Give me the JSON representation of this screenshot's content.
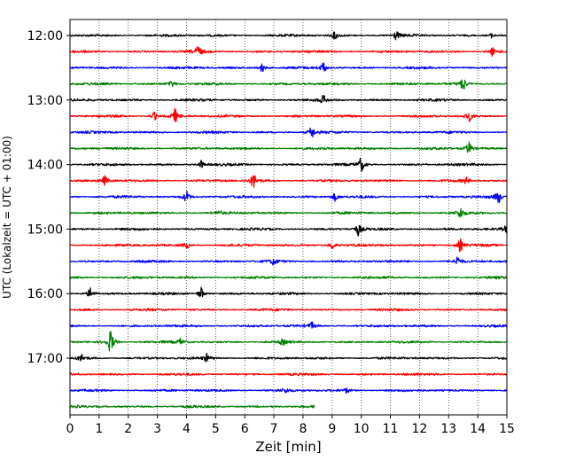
{
  "chart_data": {
    "type": "line",
    "title": "",
    "xlabel": "Zeit  [min]",
    "ylabel": "UTC (Lokalzeit = UTC + 01:00)",
    "xlim": [
      0,
      15
    ],
    "x_ticks": [
      "0",
      "1",
      "2",
      "3",
      "4",
      "5",
      "6",
      "7",
      "8",
      "9",
      "10",
      "11",
      "12",
      "13",
      "14",
      "15"
    ],
    "y_tick_labels": [
      "12:00",
      "13:00",
      "14:00",
      "15:00",
      "16:00",
      "17:00"
    ],
    "grid": "vertical dotted at each minute",
    "trace_interval_minutes": 15,
    "colors_cycle": [
      "#000000",
      "#ff0000",
      "#0000ff",
      "#008000"
    ],
    "traces": [
      {
        "start": "12:00",
        "color": "#000000",
        "end_min": 15,
        "events": [
          [
            9.1,
            0.5
          ],
          [
            11.2,
            0.5
          ],
          [
            14.5,
            0.35
          ]
        ]
      },
      {
        "start": "12:15",
        "color": "#ff0000",
        "end_min": 15,
        "events": [
          [
            4.4,
            0.8
          ],
          [
            14.5,
            0.5
          ]
        ]
      },
      {
        "start": "12:30",
        "color": "#0000ff",
        "end_min": 15,
        "events": [
          [
            6.6,
            0.6
          ],
          [
            8.7,
            0.7
          ]
        ]
      },
      {
        "start": "12:45",
        "color": "#008000",
        "end_min": 15,
        "events": [
          [
            3.5,
            0.4
          ],
          [
            13.5,
            0.9
          ]
        ]
      },
      {
        "start": "13:00",
        "color": "#000000",
        "end_min": 15,
        "events": [
          [
            8.7,
            0.5
          ]
        ]
      },
      {
        "start": "13:15",
        "color": "#ff0000",
        "end_min": 15,
        "events": [
          [
            2.9,
            0.5
          ],
          [
            3.6,
            0.9
          ],
          [
            13.7,
            0.6
          ]
        ]
      },
      {
        "start": "13:30",
        "color": "#0000ff",
        "end_min": 15,
        "events": [
          [
            8.3,
            0.8
          ]
        ]
      },
      {
        "start": "13:45",
        "color": "#008000",
        "end_min": 15,
        "events": [
          [
            13.7,
            0.8
          ]
        ]
      },
      {
        "start": "14:00",
        "color": "#000000",
        "end_min": 15,
        "events": [
          [
            4.5,
            0.5
          ],
          [
            10.0,
            0.9
          ]
        ]
      },
      {
        "start": "14:15",
        "color": "#ff0000",
        "end_min": 15,
        "events": [
          [
            1.2,
            0.6
          ],
          [
            6.3,
            1.0
          ],
          [
            13.6,
            0.4
          ]
        ]
      },
      {
        "start": "14:30",
        "color": "#0000ff",
        "end_min": 15,
        "events": [
          [
            4.0,
            0.8
          ],
          [
            9.1,
            0.5
          ],
          [
            14.7,
            0.9
          ]
        ]
      },
      {
        "start": "14:45",
        "color": "#008000",
        "end_min": 15,
        "events": [
          [
            5.1,
            0.3
          ],
          [
            13.4,
            0.7
          ]
        ]
      },
      {
        "start": "15:00",
        "color": "#000000",
        "end_min": 15,
        "events": [
          [
            9.9,
            0.8
          ],
          [
            15.0,
            0.5
          ]
        ]
      },
      {
        "start": "15:15",
        "color": "#ff0000",
        "end_min": 15,
        "events": [
          [
            4.0,
            0.4
          ],
          [
            9.0,
            0.6
          ],
          [
            13.4,
            0.8
          ]
        ]
      },
      {
        "start": "15:30",
        "color": "#0000ff",
        "end_min": 15,
        "events": [
          [
            7.0,
            0.4
          ],
          [
            13.3,
            0.6
          ]
        ]
      },
      {
        "start": "15:45",
        "color": "#008000",
        "end_min": 15,
        "events": []
      },
      {
        "start": "16:00",
        "color": "#000000",
        "end_min": 15,
        "events": [
          [
            0.7,
            0.8
          ],
          [
            4.5,
            0.8
          ]
        ]
      },
      {
        "start": "16:15",
        "color": "#ff0000",
        "end_min": 15,
        "events": []
      },
      {
        "start": "16:30",
        "color": "#0000ff",
        "end_min": 15,
        "events": [
          [
            8.3,
            0.4
          ]
        ]
      },
      {
        "start": "16:45",
        "color": "#008000",
        "end_min": 15,
        "events": [
          [
            1.4,
            1.6
          ],
          [
            3.8,
            0.4
          ],
          [
            7.3,
            0.3
          ]
        ]
      },
      {
        "start": "17:00",
        "color": "#000000",
        "end_min": 15,
        "events": [
          [
            0.4,
            0.4
          ],
          [
            4.7,
            0.5
          ]
        ]
      },
      {
        "start": "17:15",
        "color": "#ff0000",
        "end_min": 15,
        "events": []
      },
      {
        "start": "17:30",
        "color": "#0000ff",
        "end_min": 15,
        "events": [
          [
            7.4,
            0.3
          ],
          [
            9.5,
            0.3
          ]
        ]
      },
      {
        "start": "17:45",
        "color": "#008000",
        "end_min": 8.4,
        "events": []
      }
    ]
  }
}
